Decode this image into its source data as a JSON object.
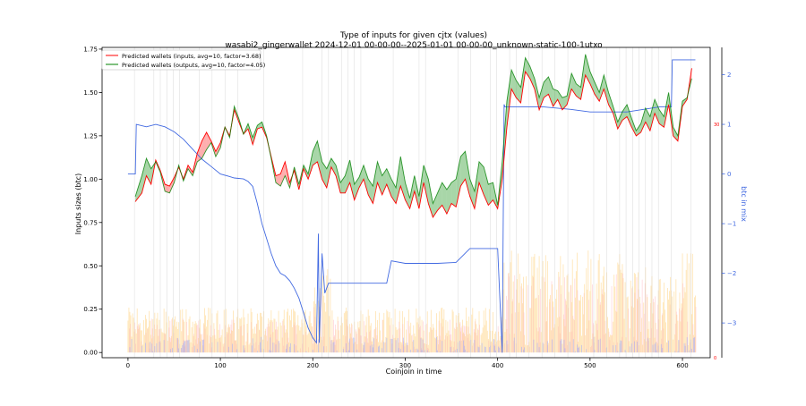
{
  "chart_data": {
    "type": "line",
    "title": "Type of inputs for given cjtx (values)",
    "subtitle": "wasabi2_gingerwallet 2024-12-01 00-00-00--2025-01-01 00-00-00_unknown-static-100-1utxo",
    "xlabel": "Coinjoin in time",
    "ylabel": "Inputs sizes (btc)",
    "y2label": "btc in mix",
    "xlim": [
      -28,
      630
    ],
    "ylim": [
      -0.03,
      1.76
    ],
    "y2lim": [
      -3.7,
      2.55
    ],
    "xticks": [
      0,
      100,
      200,
      300,
      400,
      500,
      600
    ],
    "yticks": [
      "0.00",
      "0.25",
      "0.50",
      "0.75",
      "1.00",
      "1.25",
      "1.50",
      "1.75"
    ],
    "y2ticks": [
      "−3",
      "−2",
      "−1",
      "0",
      "1",
      "2"
    ],
    "y2_scale": "log10",
    "right_marker_labels": [
      "30",
      "0"
    ],
    "grid": "vertical lines at selected coinjoins",
    "legend": "upper-left",
    "colors": {
      "inputs": "#ff0000",
      "outputs": "#008000",
      "mix": "#4169e1",
      "bars_orange": "#ffd27f",
      "bars_pink": "#ffb6c1",
      "bars_blue": "#9aa5ff"
    },
    "series": [
      {
        "name": "Predicted wallets (inputs, avg=10, factor=3.68)",
        "x": [
          8,
          15,
          20,
          25,
          30,
          35,
          40,
          45,
          50,
          55,
          60,
          65,
          70,
          75,
          80,
          85,
          90,
          95,
          100,
          105,
          110,
          115,
          120,
          125,
          130,
          135,
          140,
          145,
          150,
          155,
          160,
          165,
          170,
          175,
          180,
          185,
          190,
          195,
          200,
          205,
          210,
          215,
          220,
          225,
          230,
          235,
          240,
          245,
          250,
          255,
          260,
          265,
          270,
          275,
          280,
          285,
          290,
          295,
          300,
          305,
          310,
          315,
          320,
          325,
          330,
          335,
          340,
          345,
          350,
          355,
          360,
          365,
          370,
          375,
          380,
          385,
          390,
          395,
          400,
          405,
          410,
          415,
          420,
          425,
          430,
          435,
          440,
          445,
          450,
          455,
          460,
          465,
          470,
          475,
          480,
          485,
          490,
          495,
          500,
          505,
          510,
          515,
          520,
          525,
          530,
          535,
          540,
          545,
          550,
          555,
          560,
          565,
          570,
          575,
          580,
          585,
          590,
          595,
          600,
          605,
          610
        ],
        "values": [
          0.87,
          0.92,
          1.02,
          0.97,
          1.11,
          1.05,
          0.97,
          0.96,
          1.01,
          1.07,
          1.0,
          1.08,
          1.04,
          1.15,
          1.22,
          1.27,
          1.22,
          1.16,
          1.21,
          1.3,
          1.25,
          1.4,
          1.33,
          1.26,
          1.29,
          1.2,
          1.29,
          1.3,
          1.24,
          1.13,
          1.02,
          1.03,
          1.1,
          0.98,
          1.05,
          0.94,
          1.06,
          1.0,
          1.08,
          1.1,
          1.0,
          0.95,
          1.07,
          1.02,
          0.92,
          0.92,
          0.98,
          0.88,
          0.95,
          1.0,
          0.91,
          0.86,
          0.98,
          0.91,
          0.97,
          0.9,
          0.86,
          0.96,
          0.88,
          0.83,
          0.93,
          0.83,
          0.98,
          0.86,
          0.78,
          0.82,
          0.85,
          0.8,
          0.86,
          0.84,
          0.96,
          1.0,
          0.9,
          0.83,
          0.98,
          0.91,
          0.85,
          0.88,
          0.83,
          1.0,
          1.3,
          1.52,
          1.47,
          1.44,
          1.62,
          1.58,
          1.52,
          1.4,
          1.47,
          1.49,
          1.42,
          1.46,
          1.4,
          1.43,
          1.52,
          1.48,
          1.46,
          1.6,
          1.55,
          1.49,
          1.45,
          1.52,
          1.43,
          1.38,
          1.29,
          1.34,
          1.36,
          1.3,
          1.25,
          1.27,
          1.33,
          1.28,
          1.38,
          1.32,
          1.3,
          1.43,
          1.25,
          1.22,
          1.42,
          1.46,
          1.64
        ]
      },
      {
        "name": "Predicted wallets (outputs, avg=10, factor=4.05)",
        "x": [
          8,
          15,
          20,
          25,
          30,
          35,
          40,
          45,
          50,
          55,
          60,
          65,
          70,
          75,
          80,
          85,
          90,
          95,
          100,
          105,
          110,
          115,
          120,
          125,
          130,
          135,
          140,
          145,
          150,
          155,
          160,
          165,
          170,
          175,
          180,
          185,
          190,
          195,
          200,
          205,
          210,
          215,
          220,
          225,
          230,
          235,
          240,
          245,
          250,
          255,
          260,
          265,
          270,
          275,
          280,
          285,
          290,
          295,
          300,
          305,
          310,
          315,
          320,
          325,
          330,
          335,
          340,
          345,
          350,
          355,
          360,
          365,
          370,
          375,
          380,
          385,
          390,
          395,
          400,
          405,
          410,
          415,
          420,
          425,
          430,
          435,
          440,
          445,
          450,
          455,
          460,
          465,
          470,
          475,
          480,
          485,
          490,
          495,
          500,
          505,
          510,
          515,
          520,
          525,
          530,
          535,
          540,
          545,
          550,
          555,
          560,
          565,
          570,
          575,
          580,
          585,
          590,
          595,
          600,
          605,
          610
        ],
        "values": [
          0.9,
          1.02,
          1.12,
          1.06,
          1.1,
          1.04,
          0.93,
          0.92,
          0.98,
          1.08,
          0.99,
          1.06,
          1.02,
          1.1,
          1.12,
          1.17,
          1.21,
          1.13,
          1.18,
          1.3,
          1.24,
          1.42,
          1.35,
          1.26,
          1.32,
          1.24,
          1.31,
          1.33,
          1.25,
          1.12,
          0.98,
          0.96,
          1.02,
          0.95,
          1.07,
          0.97,
          1.08,
          1.03,
          1.16,
          1.22,
          1.1,
          1.06,
          1.12,
          1.08,
          0.98,
          1.02,
          1.11,
          0.97,
          1.01,
          1.08,
          1.0,
          0.96,
          1.1,
          1.02,
          1.06,
          1.0,
          0.95,
          1.13,
          0.98,
          0.89,
          1.02,
          0.9,
          1.08,
          1.0,
          0.86,
          0.92,
          0.98,
          0.94,
          0.98,
          1.0,
          1.13,
          1.16,
          1.0,
          0.93,
          1.1,
          1.07,
          0.97,
          0.98,
          0.85,
          1.1,
          1.45,
          1.63,
          1.57,
          1.53,
          1.7,
          1.65,
          1.58,
          1.47,
          1.56,
          1.59,
          1.52,
          1.51,
          1.47,
          1.48,
          1.61,
          1.55,
          1.53,
          1.72,
          1.62,
          1.56,
          1.5,
          1.6,
          1.5,
          1.42,
          1.33,
          1.39,
          1.43,
          1.35,
          1.28,
          1.32,
          1.41,
          1.36,
          1.46,
          1.4,
          1.36,
          1.5,
          1.3,
          1.25,
          1.45,
          1.47,
          1.58
        ]
      },
      {
        "name": "btc in mix",
        "axis": "right",
        "x": [
          0,
          8,
          9,
          20,
          30,
          40,
          50,
          60,
          70,
          80,
          90,
          100,
          110,
          115,
          125,
          130,
          135,
          140,
          145,
          150,
          155,
          160,
          165,
          170,
          175,
          180,
          185,
          190,
          195,
          200,
          204,
          206,
          207,
          210,
          213,
          217,
          218,
          230,
          240,
          250,
          260,
          270,
          280,
          285,
          300,
          315,
          335,
          355,
          370,
          378,
          400,
          405,
          407,
          408,
          420,
          450,
          480,
          500,
          540,
          575,
          588,
          589,
          600,
          614
        ],
        "values": [
          0.0,
          0.0,
          1.0,
          0.95,
          1.0,
          0.95,
          0.85,
          0.7,
          0.5,
          0.3,
          0.15,
          0.0,
          -0.05,
          -0.08,
          -0.1,
          -0.15,
          -0.25,
          -0.6,
          -1.0,
          -1.3,
          -1.6,
          -1.85,
          -2.0,
          -2.05,
          -2.15,
          -2.3,
          -2.5,
          -2.8,
          -3.1,
          -3.3,
          -3.4,
          -1.2,
          -3.4,
          -1.6,
          -2.4,
          -2.2,
          -2.2,
          -2.2,
          -2.2,
          -2.2,
          -2.2,
          -2.2,
          -2.2,
          -1.75,
          -1.8,
          -1.8,
          -1.8,
          -1.78,
          -1.5,
          -1.5,
          -1.5,
          -3.6,
          1.4,
          1.35,
          1.35,
          1.35,
          1.3,
          1.25,
          1.25,
          1.35,
          1.35,
          2.3,
          2.3,
          2.3
        ]
      }
    ]
  }
}
